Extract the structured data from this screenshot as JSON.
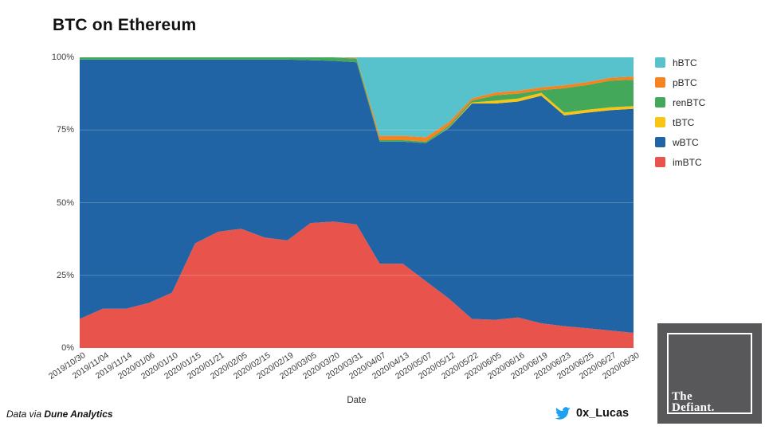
{
  "title": "BTC on Ethereum",
  "footer": {
    "attribution_prefix": "Data via ",
    "attribution_source": "Dune Analytics",
    "twitter_handle": "0x_Lucas"
  },
  "logo": {
    "line1": "The",
    "line2": "Defiant."
  },
  "chart_data": {
    "type": "area",
    "stacked": true,
    "normalized_percent": true,
    "title": "BTC on Ethereum",
    "xlabel": "Date",
    "ylabel": "",
    "ylim": [
      0,
      100
    ],
    "ytick_labels_top_to_bottom": [
      "100%",
      "75%",
      "50%",
      "25%",
      "0%"
    ],
    "grid": "horizontal-faint",
    "legend_position": "right-outside",
    "legend_order": [
      "hBTC",
      "pBTC",
      "renBTC",
      "tBTC",
      "wBTC",
      "imBTC"
    ],
    "categories": [
      "2019/10/30",
      "2019/11/04",
      "2019/11/14",
      "2020/01/06",
      "2020/01/10",
      "2020/01/15",
      "2020/01/21",
      "2020/02/05",
      "2020/02/15",
      "2020/02/19",
      "2020/03/05",
      "2020/03/20",
      "2020/03/31",
      "2020/04/07",
      "2020/04/13",
      "2020/05/07",
      "2020/05/12",
      "2020/05/22",
      "2020/06/05",
      "2020/06/16",
      "2020/06/19",
      "2020/06/23",
      "2020/06/25",
      "2020/06/27",
      "2020/06/30"
    ],
    "series_stacking_bottom_to_top": [
      {
        "name": "imBTC",
        "color": "#E8544B",
        "values": [
          10,
          13.5,
          13.5,
          15.5,
          19,
          36,
          40,
          41,
          38,
          37,
          43,
          43.5,
          42.5,
          29,
          29,
          23,
          17,
          10,
          9.7,
          10.5,
          8.5,
          7.5,
          6.8,
          6,
          5.2
        ]
      },
      {
        "name": "wBTC",
        "color": "#2164A5",
        "values": [
          89.2,
          85.7,
          85.7,
          83.7,
          80.2,
          63.2,
          59.2,
          58.2,
          61.2,
          62.2,
          56,
          55.3,
          55.8,
          42,
          42,
          47.5,
          58.7,
          74.1,
          74.4,
          74.3,
          78.3,
          72.5,
          74.2,
          75.8,
          77.1
        ]
      },
      {
        "name": "tBTC",
        "color": "#F9C412",
        "values": [
          0,
          0,
          0,
          0,
          0,
          0,
          0,
          0,
          0,
          0,
          0,
          0,
          0,
          0,
          0,
          0,
          0.1,
          0.4,
          1,
          1,
          1,
          1,
          1,
          1,
          0.9
        ]
      },
      {
        "name": "renBTC",
        "color": "#44A85A",
        "values": [
          0.8,
          0.8,
          0.8,
          0.8,
          0.8,
          0.8,
          0.8,
          0.8,
          0.8,
          0.8,
          1,
          1.2,
          1.2,
          0.5,
          0.5,
          0.5,
          0.7,
          0.6,
          1.8,
          1.7,
          0.9,
          8.4,
          8.5,
          9.2,
          9.1
        ]
      },
      {
        "name": "pBTC",
        "color": "#F6831E",
        "values": [
          0,
          0,
          0,
          0,
          0,
          0,
          0,
          0,
          0,
          0,
          0,
          0,
          0.3,
          1.5,
          1.5,
          1.5,
          1.2,
          0.8,
          1,
          1,
          1,
          1,
          1,
          1,
          1.1
        ]
      },
      {
        "name": "hBTC",
        "color": "#57C2CC",
        "values": [
          0,
          0,
          0,
          0,
          0,
          0,
          0,
          0,
          0,
          0,
          0,
          0,
          0.2,
          27,
          27,
          27.5,
          22.3,
          14.1,
          12.1,
          11.5,
          10.3,
          9.6,
          8.5,
          7,
          6.6
        ]
      }
    ]
  }
}
